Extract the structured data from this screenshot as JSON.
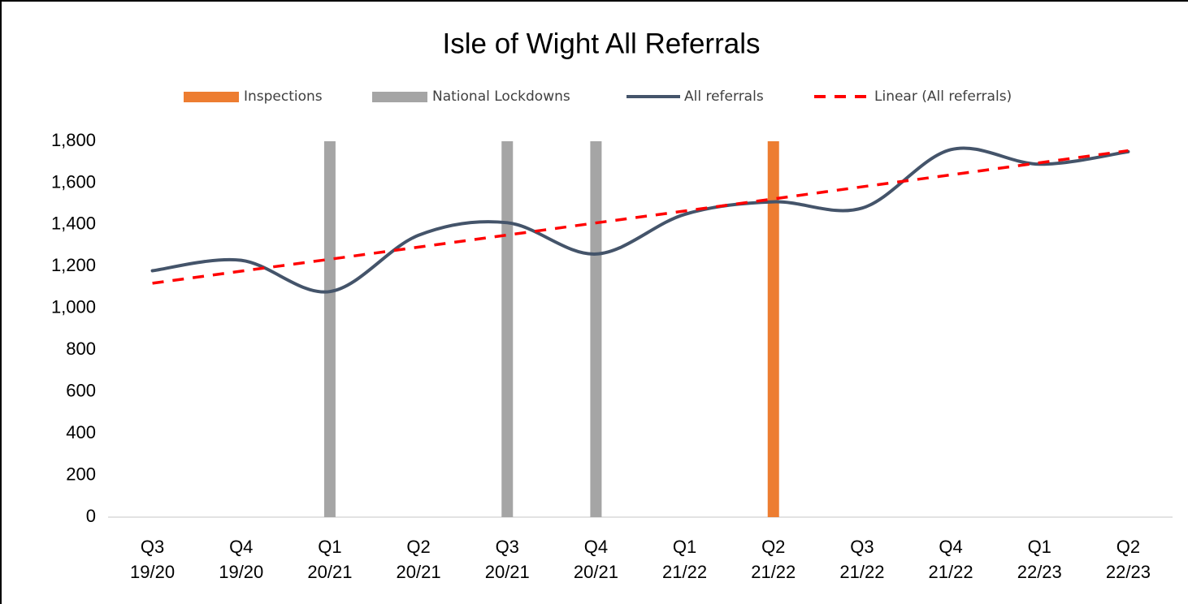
{
  "chart_data": {
    "type": "line",
    "title": "Isle of Wight All Referrals",
    "categories": [
      [
        "Q3",
        "19/20"
      ],
      [
        "Q4",
        "19/20"
      ],
      [
        "Q1",
        "20/21"
      ],
      [
        "Q2",
        "20/21"
      ],
      [
        "Q3",
        "20/21"
      ],
      [
        "Q4",
        "20/21"
      ],
      [
        "Q1",
        "21/22"
      ],
      [
        "Q2",
        "21/22"
      ],
      [
        "Q3",
        "21/22"
      ],
      [
        "Q4",
        "21/22"
      ],
      [
        "Q1",
        "22/23"
      ],
      [
        "Q2",
        "22/23"
      ]
    ],
    "series": [
      {
        "name": "Inspections",
        "type": "bar",
        "color": "#ED7D31",
        "values": [
          null,
          null,
          null,
          null,
          null,
          null,
          null,
          1800,
          null,
          null,
          null,
          null
        ]
      },
      {
        "name": "National Lockdowns",
        "type": "bar",
        "color": "#A5A5A5",
        "values": [
          null,
          null,
          1800,
          null,
          1800,
          1800,
          null,
          null,
          null,
          null,
          null,
          null
        ]
      },
      {
        "name": "All referrals",
        "type": "line",
        "color": "#44546A",
        "smooth": true,
        "values": [
          1180,
          1230,
          1080,
          1350,
          1410,
          1260,
          1450,
          1510,
          1480,
          1760,
          1690,
          1750
        ]
      },
      {
        "name": "Linear (All referrals)",
        "type": "line",
        "color": "#FF0000",
        "dashed": true,
        "values": [
          1120,
          1178,
          1235,
          1293,
          1351,
          1409,
          1466,
          1524,
          1582,
          1639,
          1697,
          1755
        ]
      }
    ],
    "ylim": [
      0,
      1800
    ],
    "yticks": [
      0,
      200,
      400,
      600,
      800,
      {
        "value": 1000,
        "label": "1,000"
      },
      {
        "value": 1200,
        "label": "1,200"
      },
      {
        "value": 1400,
        "label": "1,400"
      },
      {
        "value": 1600,
        "label": "1,600"
      },
      {
        "value": 1800,
        "label": "1,800"
      }
    ],
    "legend": "top"
  }
}
